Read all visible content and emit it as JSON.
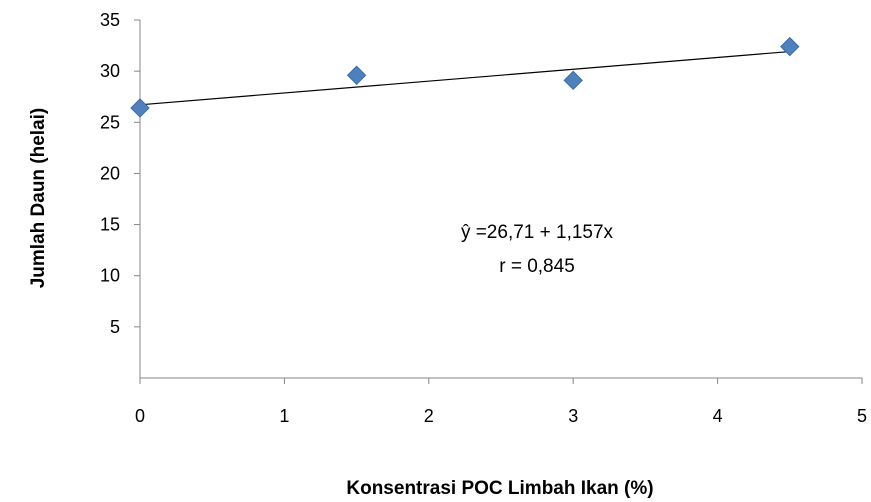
{
  "chart_data": {
    "type": "scatter",
    "title": "",
    "xlabel": "Konsentrasi  POC Limbah Ikan (%)",
    "ylabel": "Jumlah Daun (helai)",
    "xlim": [
      0,
      5
    ],
    "ylim": [
      0,
      35
    ],
    "xticks": [
      "0",
      "1",
      "2",
      "3",
      "4",
      "5"
    ],
    "yticks": [
      "5",
      "10",
      "15",
      "20",
      "25",
      "30",
      "35"
    ],
    "grid": false,
    "legend": "none",
    "marker": "diamond",
    "marker_color": "#4F81BD",
    "series": [
      {
        "x": [
          0,
          1.5,
          3,
          4.5
        ],
        "y": [
          26.4,
          29.6,
          29.1,
          32.4
        ]
      }
    ],
    "trendline": {
      "intercept": 26.71,
      "slope": 1.157
    },
    "annotations": [
      "ŷ =26,71 + 1,157x",
      "r = 0,845"
    ]
  }
}
